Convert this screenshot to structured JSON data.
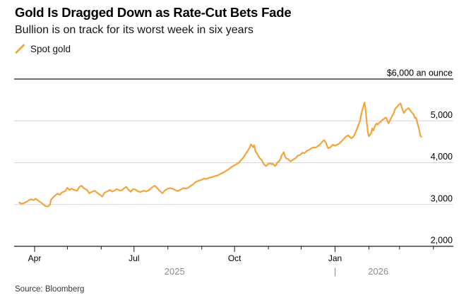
{
  "header": {
    "title": "Gold Is Dragged Down as Rate-Cut Bets Fade",
    "subtitle": "Bullion is on track for its worst week in six years"
  },
  "legend": {
    "label": "Spot gold"
  },
  "footer": {
    "source": "Source: Bloomberg"
  },
  "chart_data": {
    "type": "line",
    "title": "Gold Is Dragged Down as Rate-Cut Bets Fade",
    "subtitle": "Bullion is on track for its worst week in six years",
    "unit_label": "$6,000 an ounce",
    "colors": {
      "line": "#F5A33C",
      "grid": "#D6D6D6",
      "axis": "#1A1A1A",
      "label": "#000000",
      "muted": "#8C8C8C"
    },
    "legend_position": "top-left",
    "grid": true,
    "y_axis": {
      "side": "right",
      "range": [
        2000,
        6000
      ],
      "ticks": [
        {
          "value": 6000,
          "label": "$6,000 an ounce",
          "edge": true
        },
        {
          "value": 5000,
          "label": "5,000"
        },
        {
          "value": 4000,
          "label": "4,000"
        },
        {
          "value": 3000,
          "label": "3,000"
        },
        {
          "value": 2000,
          "label": "2,000",
          "edge": true
        }
      ]
    },
    "x_axis": {
      "ticks": [
        {
          "date": "2025-04-01",
          "label": "Apr"
        },
        {
          "date": "2025-05-01"
        },
        {
          "date": "2025-06-01"
        },
        {
          "date": "2025-07-01",
          "label": "Jul"
        },
        {
          "date": "2025-08-01"
        },
        {
          "date": "2025-09-01"
        },
        {
          "date": "2025-10-01",
          "label": "Oct"
        },
        {
          "date": "2025-11-01"
        },
        {
          "date": "2025-12-01"
        },
        {
          "date": "2026-01-01",
          "label": "Jan"
        },
        {
          "date": "2026-02-01"
        },
        {
          "date": "2026-03-01"
        },
        {
          "date": "2026-04-01"
        }
      ],
      "years": [
        {
          "label": "2025"
        },
        {
          "label": "2026"
        }
      ],
      "year_divider": "|",
      "year_divider_date": "2026-01-01"
    },
    "series": [
      {
        "name": "Spot gold",
        "color": "#F5A33C",
        "points": [
          [
            "2025-03-18",
            3045
          ],
          [
            "2025-03-20",
            3020
          ],
          [
            "2025-03-22",
            3030
          ],
          [
            "2025-03-25",
            3070
          ],
          [
            "2025-03-27",
            3105
          ],
          [
            "2025-03-29",
            3125
          ],
          [
            "2025-03-31",
            3100
          ],
          [
            "2025-04-02",
            3140
          ],
          [
            "2025-04-05",
            3080
          ],
          [
            "2025-04-07",
            3045
          ],
          [
            "2025-04-09",
            3000
          ],
          [
            "2025-04-11",
            2960
          ],
          [
            "2025-04-13",
            2950
          ],
          [
            "2025-04-15",
            2990
          ],
          [
            "2025-04-16",
            3110
          ],
          [
            "2025-04-19",
            3200
          ],
          [
            "2025-04-22",
            3260
          ],
          [
            "2025-04-24",
            3230
          ],
          [
            "2025-04-26",
            3290
          ],
          [
            "2025-04-29",
            3320
          ],
          [
            "2025-05-01",
            3400
          ],
          [
            "2025-05-03",
            3345
          ],
          [
            "2025-05-05",
            3380
          ],
          [
            "2025-05-07",
            3350
          ],
          [
            "2025-05-10",
            3330
          ],
          [
            "2025-05-12",
            3420
          ],
          [
            "2025-05-14",
            3450
          ],
          [
            "2025-05-16",
            3390
          ],
          [
            "2025-05-19",
            3345
          ],
          [
            "2025-05-21",
            3270
          ],
          [
            "2025-05-24",
            3310
          ],
          [
            "2025-05-26",
            3330
          ],
          [
            "2025-05-28",
            3285
          ],
          [
            "2025-05-30",
            3250
          ],
          [
            "2025-06-02",
            3190
          ],
          [
            "2025-06-04",
            3280
          ],
          [
            "2025-06-07",
            3320
          ],
          [
            "2025-06-09",
            3350
          ],
          [
            "2025-06-11",
            3310
          ],
          [
            "2025-06-13",
            3330
          ],
          [
            "2025-06-15",
            3370
          ],
          [
            "2025-06-18",
            3335
          ],
          [
            "2025-06-20",
            3340
          ],
          [
            "2025-06-22",
            3390
          ],
          [
            "2025-06-24",
            3420
          ],
          [
            "2025-06-26",
            3350
          ],
          [
            "2025-06-28",
            3305
          ],
          [
            "2025-06-30",
            3370
          ],
          [
            "2025-07-02",
            3360
          ],
          [
            "2025-07-05",
            3310
          ],
          [
            "2025-07-07",
            3300
          ],
          [
            "2025-07-10",
            3330
          ],
          [
            "2025-07-12",
            3310
          ],
          [
            "2025-07-15",
            3350
          ],
          [
            "2025-07-18",
            3420
          ],
          [
            "2025-07-20",
            3450
          ],
          [
            "2025-07-22",
            3400
          ],
          [
            "2025-07-24",
            3340
          ],
          [
            "2025-07-27",
            3270
          ],
          [
            "2025-07-29",
            3330
          ],
          [
            "2025-08-01",
            3380
          ],
          [
            "2025-08-03",
            3390
          ],
          [
            "2025-08-06",
            3370
          ],
          [
            "2025-08-08",
            3340
          ],
          [
            "2025-08-10",
            3320
          ],
          [
            "2025-08-13",
            3360
          ],
          [
            "2025-08-15",
            3390
          ],
          [
            "2025-08-18",
            3380
          ],
          [
            "2025-08-20",
            3410
          ],
          [
            "2025-08-22",
            3450
          ],
          [
            "2025-08-24",
            3480
          ],
          [
            "2025-08-26",
            3530
          ],
          [
            "2025-08-29",
            3570
          ],
          [
            "2025-09-01",
            3590
          ],
          [
            "2025-09-03",
            3620
          ],
          [
            "2025-09-05",
            3610
          ],
          [
            "2025-09-08",
            3640
          ],
          [
            "2025-09-10",
            3650
          ],
          [
            "2025-09-13",
            3680
          ],
          [
            "2025-09-16",
            3700
          ],
          [
            "2025-09-18",
            3730
          ],
          [
            "2025-09-21",
            3770
          ],
          [
            "2025-09-23",
            3800
          ],
          [
            "2025-09-26",
            3850
          ],
          [
            "2025-09-28",
            3890
          ],
          [
            "2025-10-01",
            3940
          ],
          [
            "2025-10-03",
            3970
          ],
          [
            "2025-10-05",
            4000
          ],
          [
            "2025-10-07",
            4060
          ],
          [
            "2025-10-09",
            4120
          ],
          [
            "2025-10-11",
            4200
          ],
          [
            "2025-10-13",
            4280
          ],
          [
            "2025-10-15",
            4370
          ],
          [
            "2025-10-16",
            4440
          ],
          [
            "2025-10-18",
            4370
          ],
          [
            "2025-10-19",
            4420
          ],
          [
            "2025-10-20",
            4280
          ],
          [
            "2025-10-22",
            4200
          ],
          [
            "2025-10-23",
            4150
          ],
          [
            "2025-10-24",
            4110
          ],
          [
            "2025-10-26",
            4060
          ],
          [
            "2025-10-27",
            4000
          ],
          [
            "2025-10-28",
            3960
          ],
          [
            "2025-10-30",
            3920
          ],
          [
            "2025-10-31",
            3945
          ],
          [
            "2025-11-01",
            3975
          ],
          [
            "2025-11-03",
            3985
          ],
          [
            "2025-11-04",
            3960
          ],
          [
            "2025-11-05",
            3975
          ],
          [
            "2025-11-07",
            3920
          ],
          [
            "2025-11-08",
            3945
          ],
          [
            "2025-11-09",
            4000
          ],
          [
            "2025-11-11",
            4040
          ],
          [
            "2025-11-12",
            4090
          ],
          [
            "2025-11-13",
            4170
          ],
          [
            "2025-11-15",
            4250
          ],
          [
            "2025-11-16",
            4170
          ],
          [
            "2025-11-17",
            4110
          ],
          [
            "2025-11-19",
            4085
          ],
          [
            "2025-11-20",
            4060
          ],
          [
            "2025-11-21",
            4030
          ],
          [
            "2025-11-23",
            4060
          ],
          [
            "2025-11-24",
            4080
          ],
          [
            "2025-11-26",
            4110
          ],
          [
            "2025-11-28",
            4170
          ],
          [
            "2025-11-30",
            4185
          ],
          [
            "2025-12-01",
            4210
          ],
          [
            "2025-12-02",
            4240
          ],
          [
            "2025-12-04",
            4225
          ],
          [
            "2025-12-05",
            4255
          ],
          [
            "2025-12-06",
            4280
          ],
          [
            "2025-12-08",
            4300
          ],
          [
            "2025-12-09",
            4320
          ],
          [
            "2025-12-10",
            4340
          ],
          [
            "2025-12-12",
            4365
          ],
          [
            "2025-12-14",
            4360
          ],
          [
            "2025-12-16",
            4390
          ],
          [
            "2025-12-18",
            4430
          ],
          [
            "2025-12-20",
            4490
          ],
          [
            "2025-12-21",
            4520
          ],
          [
            "2025-12-22",
            4540
          ],
          [
            "2025-12-24",
            4460
          ],
          [
            "2025-12-25",
            4375
          ],
          [
            "2025-12-26",
            4345
          ],
          [
            "2025-12-28",
            4375
          ],
          [
            "2025-12-30",
            4430
          ],
          [
            "2026-01-01",
            4405
          ],
          [
            "2026-01-03",
            4430
          ],
          [
            "2026-01-05",
            4460
          ],
          [
            "2026-01-07",
            4515
          ],
          [
            "2026-01-09",
            4570
          ],
          [
            "2026-01-11",
            4625
          ],
          [
            "2026-01-13",
            4655
          ],
          [
            "2026-01-14",
            4625
          ],
          [
            "2026-01-16",
            4580
          ],
          [
            "2026-01-18",
            4630
          ],
          [
            "2026-01-20",
            4740
          ],
          [
            "2026-01-21",
            4800
          ],
          [
            "2026-01-23",
            4940
          ],
          [
            "2026-01-24",
            5020
          ],
          [
            "2026-01-25",
            5160
          ],
          [
            "2026-01-27",
            5360
          ],
          [
            "2026-01-28",
            5440
          ],
          [
            "2026-01-29",
            5250
          ],
          [
            "2026-01-30",
            4970
          ],
          [
            "2026-01-31",
            4740
          ],
          [
            "2026-02-01",
            4630
          ],
          [
            "2026-02-03",
            4710
          ],
          [
            "2026-02-04",
            4820
          ],
          [
            "2026-02-05",
            4770
          ],
          [
            "2026-02-07",
            4900
          ],
          [
            "2026-02-08",
            4940
          ],
          [
            "2026-02-09",
            4910
          ],
          [
            "2026-02-11",
            4970
          ],
          [
            "2026-02-12",
            4975
          ],
          [
            "2026-02-13",
            5020
          ],
          [
            "2026-02-15",
            5050
          ],
          [
            "2026-02-16",
            5080
          ],
          [
            "2026-02-17",
            5070
          ],
          [
            "2026-02-18",
            4990
          ],
          [
            "2026-02-19",
            4940
          ],
          [
            "2026-02-20",
            5000
          ],
          [
            "2026-02-21",
            5050
          ],
          [
            "2026-02-23",
            5150
          ],
          [
            "2026-02-24",
            5210
          ],
          [
            "2026-02-25",
            5290
          ],
          [
            "2026-02-27",
            5340
          ],
          [
            "2026-02-28",
            5380
          ],
          [
            "2026-03-02",
            5415
          ],
          [
            "2026-03-03",
            5320
          ],
          [
            "2026-03-05",
            5190
          ],
          [
            "2026-03-07",
            5265
          ],
          [
            "2026-03-09",
            5305
          ],
          [
            "2026-03-10",
            5280
          ],
          [
            "2026-03-12",
            5210
          ],
          [
            "2026-03-14",
            5150
          ],
          [
            "2026-03-15",
            5070
          ],
          [
            "2026-03-16",
            5080
          ],
          [
            "2026-03-17",
            4985
          ],
          [
            "2026-03-19",
            4790
          ],
          [
            "2026-03-20",
            4650
          ],
          [
            "2026-03-21",
            4620
          ]
        ]
      }
    ]
  }
}
